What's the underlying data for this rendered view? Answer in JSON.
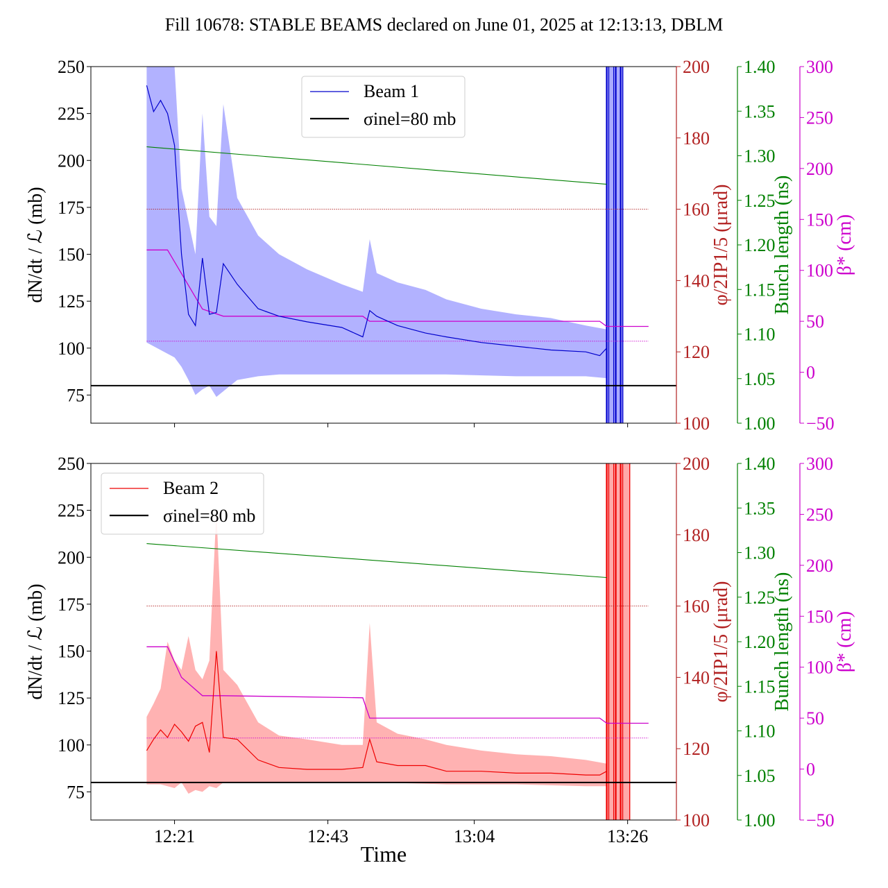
{
  "title": "Fill 10678: STABLE BEAMS declared on June 01, 2025 at 12:13:13, DBLM",
  "xlabel": "Time",
  "x_ticks": [
    "12:21",
    "12:43",
    "13:04",
    "13:26"
  ],
  "colors": {
    "beam1": "#0000cc",
    "beam1_band": "#aaaaff",
    "beam2": "#ee0000",
    "beam2_band": "#ffaaaa",
    "phi_axis": "#b22222",
    "bunch_axis": "#008000",
    "beta_axis": "#cc00cc",
    "ref_line": "#000000"
  },
  "chart_data": [
    {
      "type": "line",
      "panel": "top",
      "legend_position": "upper-center",
      "legend": [
        "Beam 1",
        "σinel=80 mb"
      ],
      "ylabel_left": "dN/dt / ℒ (mb)",
      "ylim_left": [
        60,
        250
      ],
      "yticks_left": [
        "75",
        "100",
        "125",
        "150",
        "175",
        "200",
        "225",
        "250"
      ],
      "ylabel_phi": "φ/2IP1/5 (μrad)",
      "ylim_phi": [
        100,
        200
      ],
      "yticks_phi": [
        "100",
        "120",
        "140",
        "160",
        "180",
        "200"
      ],
      "ylabel_bunch": "Bunch length (ns)",
      "ylim_bunch": [
        1.0,
        1.4
      ],
      "yticks_bunch": [
        "1.00",
        "1.05",
        "1.10",
        "1.15",
        "1.20",
        "1.25",
        "1.30",
        "1.35",
        "1.40"
      ],
      "ylabel_beta": "β* (cm)",
      "ylim_beta": [
        -50,
        300
      ],
      "yticks_beta": [
        "−50",
        "0",
        "50",
        "100",
        "150",
        "200",
        "250",
        "300"
      ],
      "sigma_inel": 80,
      "series": [
        {
          "name": "Beam 1",
          "axis": "left",
          "x": [
            "12:17",
            "12:18",
            "12:19",
            "12:20",
            "12:21",
            "12:22",
            "12:23",
            "12:24",
            "12:25",
            "12:26",
            "12:27",
            "12:28",
            "12:30",
            "12:33",
            "12:36",
            "12:40",
            "12:45",
            "12:48",
            "12:49",
            "12:50",
            "12:53",
            "12:57",
            "13:00",
            "13:05",
            "13:10",
            "13:15",
            "13:20",
            "13:22",
            "13:23"
          ],
          "values": [
            240,
            226,
            232,
            225,
            208,
            150,
            118,
            112,
            148,
            118,
            119,
            145,
            134,
            121,
            117,
            114,
            111,
            106,
            120,
            117,
            112,
            108,
            106,
            103,
            101,
            99,
            98,
            96,
            100
          ]
        },
        {
          "name": "band upper",
          "axis": "left",
          "x": [
            "12:17",
            "12:20",
            "12:21",
            "12:22",
            "12:24",
            "12:25",
            "12:26",
            "12:27",
            "12:28",
            "12:30",
            "12:33",
            "12:36",
            "12:40",
            "12:45",
            "12:48",
            "12:49",
            "12:50",
            "12:53",
            "12:57",
            "13:00",
            "13:05",
            "13:10",
            "13:15",
            "13:20",
            "13:23"
          ],
          "values": [
            250,
            250,
            250,
            185,
            150,
            225,
            170,
            165,
            230,
            180,
            160,
            150,
            142,
            134,
            130,
            158,
            140,
            135,
            131,
            126,
            121,
            118,
            116,
            112,
            110
          ]
        },
        {
          "name": "band lower",
          "axis": "left",
          "x": [
            "12:17",
            "12:19",
            "12:21",
            "12:22",
            "12:23",
            "12:24",
            "12:25",
            "12:26",
            "12:27",
            "12:28",
            "12:30",
            "12:33",
            "12:36",
            "12:40",
            "12:45",
            "12:50",
            "13:00",
            "13:10",
            "13:20",
            "13:23"
          ],
          "values": [
            103,
            99,
            95,
            90,
            83,
            75,
            78,
            80,
            74,
            77,
            83,
            85,
            86,
            86,
            86,
            86,
            86,
            85,
            85,
            84
          ]
        },
        {
          "name": "crossing angle",
          "axis": "phi",
          "x": [
            "12:17",
            "13:23",
            "13:29"
          ],
          "values": [
            160,
            160,
            160
          ]
        },
        {
          "name": "bunch length",
          "axis": "bunch",
          "x": [
            "12:17",
            "13:23"
          ],
          "values": [
            1.31,
            1.268
          ]
        },
        {
          "name": "beta*",
          "axis": "beta",
          "x": [
            "12:17",
            "12:20",
            "12:25",
            "12:28",
            "12:48",
            "12:49",
            "13:22",
            "13:23",
            "13:29"
          ],
          "values": [
            120,
            120,
            62,
            55,
            55,
            50,
            50,
            45,
            45
          ]
        },
        {
          "name": "phi lower ref",
          "axis": "phi",
          "x": [
            "12:17",
            "13:29"
          ],
          "values": [
            123,
            123
          ]
        }
      ],
      "spikes": {
        "start": "13:23",
        "end": "13:25",
        "lines": [
          "13:23",
          "13:23",
          "13:24",
          "13:24",
          "13:25",
          "13:25",
          "13:25",
          "13:25"
        ]
      }
    },
    {
      "type": "line",
      "panel": "bottom",
      "legend_position": "upper-left",
      "legend": [
        "Beam 2",
        "σinel=80 mb"
      ],
      "ylabel_left": "dN/dt / ℒ (mb)",
      "ylim_left": [
        60,
        250
      ],
      "yticks_left": [
        "75",
        "100",
        "125",
        "150",
        "175",
        "200",
        "225",
        "250"
      ],
      "ylabel_phi": "φ/2IP1/5 (μrad)",
      "ylim_phi": [
        100,
        200
      ],
      "yticks_phi": [
        "100",
        "120",
        "140",
        "160",
        "180",
        "200"
      ],
      "ylabel_bunch": "Bunch length (ns)",
      "ylim_bunch": [
        1.0,
        1.4
      ],
      "yticks_bunch": [
        "1.00",
        "1.05",
        "1.10",
        "1.15",
        "1.20",
        "1.25",
        "1.30",
        "1.35",
        "1.40"
      ],
      "ylabel_beta": "β* (cm)",
      "ylim_beta": [
        -50,
        300
      ],
      "yticks_beta": [
        "−50",
        "0",
        "50",
        "100",
        "150",
        "200",
        "250",
        "300"
      ],
      "sigma_inel": 80,
      "series": [
        {
          "name": "Beam 2",
          "axis": "left",
          "x": [
            "12:17",
            "12:18",
            "12:19",
            "12:20",
            "12:21",
            "12:22",
            "12:23",
            "12:24",
            "12:25",
            "12:26",
            "12:27",
            "12:28",
            "12:30",
            "12:33",
            "12:36",
            "12:40",
            "12:45",
            "12:48",
            "12:49",
            "12:50",
            "12:53",
            "12:57",
            "13:00",
            "13:05",
            "13:10",
            "13:15",
            "13:20",
            "13:22",
            "13:23"
          ],
          "values": [
            97,
            103,
            108,
            104,
            111,
            107,
            102,
            110,
            112,
            96,
            150,
            104,
            103,
            92,
            88,
            87,
            87,
            88,
            103,
            91,
            89,
            89,
            86,
            86,
            85,
            85,
            84,
            84,
            86
          ]
        },
        {
          "name": "band upper",
          "axis": "left",
          "x": [
            "12:17",
            "12:18",
            "12:19",
            "12:20",
            "12:21",
            "12:22",
            "12:23",
            "12:24",
            "12:25",
            "12:26",
            "12:27",
            "12:28",
            "12:30",
            "12:33",
            "12:36",
            "12:40",
            "12:45",
            "12:48",
            "12:49",
            "12:50",
            "12:53",
            "12:57",
            "13:00",
            "13:05",
            "13:10",
            "13:15",
            "13:20",
            "13:23"
          ],
          "values": [
            115,
            122,
            130,
            155,
            145,
            140,
            158,
            140,
            135,
            145,
            225,
            140,
            132,
            112,
            105,
            103,
            100,
            100,
            165,
            112,
            106,
            103,
            100,
            97,
            95,
            94,
            92,
            90
          ]
        },
        {
          "name": "band lower",
          "axis": "left",
          "x": [
            "12:17",
            "12:19",
            "12:21",
            "12:22",
            "12:23",
            "12:24",
            "12:25",
            "12:26",
            "12:27",
            "12:28",
            "12:30",
            "12:33",
            "12:36",
            "12:40",
            "12:45",
            "12:50",
            "13:00",
            "13:10",
            "13:20",
            "13:23"
          ],
          "values": [
            79,
            79,
            77,
            80,
            74,
            76,
            75,
            78,
            77,
            80,
            80,
            80,
            80,
            80,
            80,
            80,
            79,
            79,
            78,
            78
          ]
        },
        {
          "name": "crossing angle",
          "axis": "phi",
          "x": [
            "12:17",
            "13:29"
          ],
          "values": [
            160,
            160
          ]
        },
        {
          "name": "bunch length",
          "axis": "bunch",
          "x": [
            "12:17",
            "13:23"
          ],
          "values": [
            1.31,
            1.272
          ]
        },
        {
          "name": "beta*",
          "axis": "beta",
          "x": [
            "12:17",
            "12:20",
            "12:22",
            "12:25",
            "12:28",
            "12:48",
            "12:49",
            "13:22",
            "13:23",
            "13:29"
          ],
          "values": [
            120,
            120,
            90,
            72,
            72,
            70,
            50,
            50,
            45,
            45
          ]
        },
        {
          "name": "phi lower ref",
          "axis": "phi",
          "x": [
            "12:17",
            "13:29"
          ],
          "values": [
            123,
            123
          ]
        }
      ],
      "spikes": {
        "start": "13:23",
        "end": "13:26",
        "lines": [
          "13:23",
          "13:23",
          "13:24",
          "13:24",
          "13:25",
          "13:25",
          "13:25",
          "13:26"
        ]
      }
    }
  ]
}
